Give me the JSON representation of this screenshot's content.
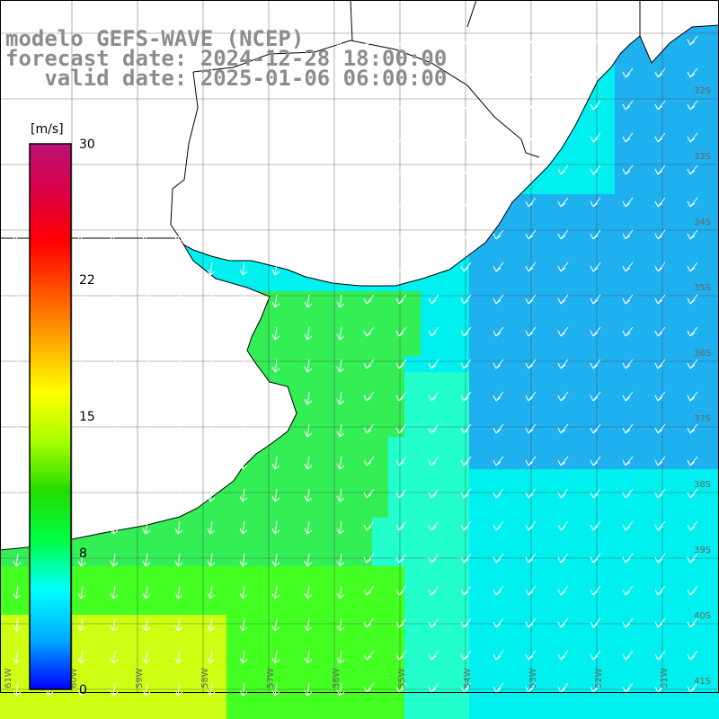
{
  "header": {
    "line1": "modelo GEFS-WAVE (NCEP)",
    "line2": "forecast date: 2024-12-28 18:00:00",
    "line3": "   valid date: 2025-01-06 06:00:00"
  },
  "colorbar": {
    "unit": "[m/s]",
    "labels": [
      "30",
      "22",
      "15",
      "8",
      "0"
    ],
    "colors": [
      "#0000ff",
      "#00aaff",
      "#00ffff",
      "#00ff44",
      "#22dd00",
      "#aaff00",
      "#ffff00",
      "#ffaa00",
      "#ff5500",
      "#ff0000",
      "#dd0044",
      "#bb1177"
    ]
  },
  "axes": {
    "lon_labels": [
      "61W",
      "60W",
      "59W",
      "58W",
      "57W",
      "56W",
      "55W",
      "54W",
      "53W",
      "52W",
      "51W"
    ],
    "lat_labels": [
      "32S",
      "33S",
      "34S",
      "35S",
      "36S",
      "37S",
      "38S",
      "39S",
      "40S",
      "41S"
    ]
  },
  "field": {
    "palette": {
      "blue": "#1fb0f0",
      "cyan": "#00f0f0",
      "aqua": "#22ffcc",
      "green": "#33ee55",
      "lime": "#44ff22",
      "yellow": "#ccff11"
    }
  }
}
